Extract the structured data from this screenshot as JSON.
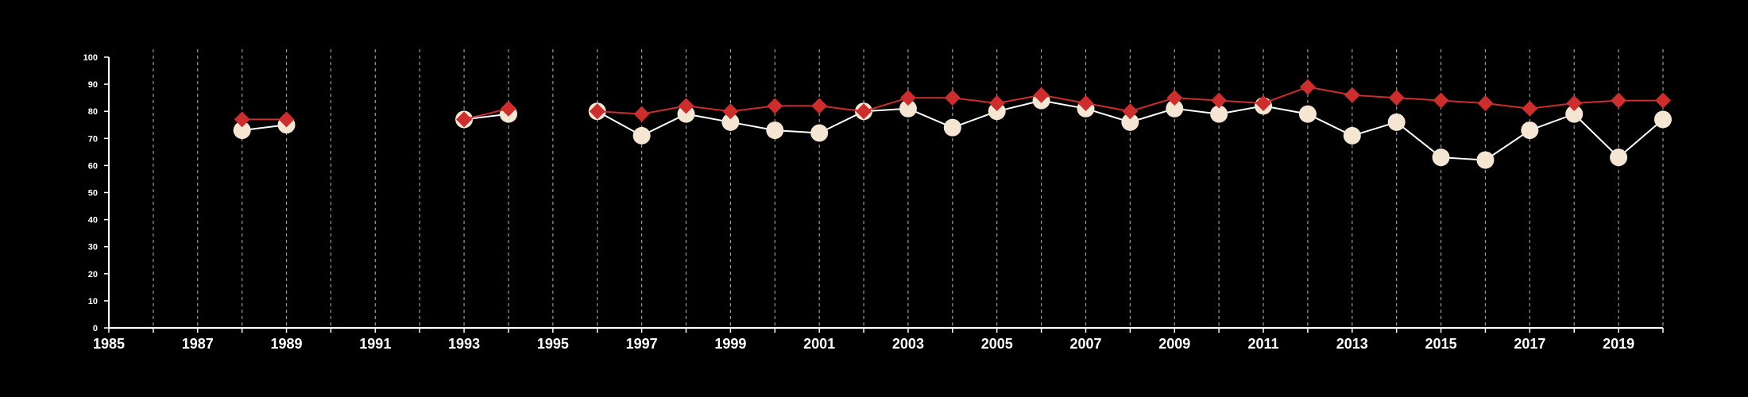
{
  "chart_data": {
    "type": "line",
    "title": "",
    "xlabel": "",
    "ylabel": "",
    "xlim": [
      1985,
      2020
    ],
    "ylim": [
      0,
      100
    ],
    "x_ticks": [
      1985,
      1987,
      1989,
      1991,
      1993,
      1995,
      1997,
      1999,
      2001,
      2003,
      2005,
      2007,
      2009,
      2011,
      2013,
      2015,
      2017,
      2019
    ],
    "y_ticks": [
      0,
      10,
      20,
      30,
      40,
      50,
      60,
      70,
      80,
      90,
      100
    ],
    "vertical_gridlines_every_year": true,
    "background": "#000000",
    "series": [
      {
        "marker": "circle",
        "color": "#f5e6d3",
        "line_color": "#ffffff",
        "points": [
          {
            "x": 1988,
            "y": 73
          },
          {
            "x": 1989,
            "y": 75
          },
          {
            "x": 1993,
            "y": 77
          },
          {
            "x": 1994,
            "y": 79
          },
          {
            "x": 1996,
            "y": 80
          },
          {
            "x": 1997,
            "y": 71
          },
          {
            "x": 1998,
            "y": 79
          },
          {
            "x": 1999,
            "y": 76
          },
          {
            "x": 2000,
            "y": 73
          },
          {
            "x": 2001,
            "y": 72
          },
          {
            "x": 2002,
            "y": 80
          },
          {
            "x": 2003,
            "y": 81
          },
          {
            "x": 2004,
            "y": 74
          },
          {
            "x": 2005,
            "y": 80
          },
          {
            "x": 2006,
            "y": 84
          },
          {
            "x": 2007,
            "y": 81
          },
          {
            "x": 2008,
            "y": 76
          },
          {
            "x": 2009,
            "y": 81
          },
          {
            "x": 2010,
            "y": 79
          },
          {
            "x": 2011,
            "y": 82
          },
          {
            "x": 2012,
            "y": 79
          },
          {
            "x": 2013,
            "y": 71
          },
          {
            "x": 2014,
            "y": 76
          },
          {
            "x": 2015,
            "y": 63
          },
          {
            "x": 2016,
            "y": 62
          },
          {
            "x": 2017,
            "y": 73
          },
          {
            "x": 2018,
            "y": 79
          },
          {
            "x": 2019,
            "y": 63
          },
          {
            "x": 2020,
            "y": 77
          }
        ],
        "segments": [
          [
            1988,
            1989
          ],
          [
            1993,
            1994
          ],
          [
            1996,
            2020
          ]
        ]
      },
      {
        "marker": "diamond",
        "color": "#cc2d2d",
        "line_color": "#cc2d2d",
        "points": [
          {
            "x": 1988,
            "y": 77
          },
          {
            "x": 1989,
            "y": 77
          },
          {
            "x": 1993,
            "y": 77
          },
          {
            "x": 1994,
            "y": 81
          },
          {
            "x": 1996,
            "y": 80
          },
          {
            "x": 1997,
            "y": 79
          },
          {
            "x": 1998,
            "y": 82
          },
          {
            "x": 1999,
            "y": 80
          },
          {
            "x": 2000,
            "y": 82
          },
          {
            "x": 2001,
            "y": 82
          },
          {
            "x": 2002,
            "y": 80
          },
          {
            "x": 2003,
            "y": 85
          },
          {
            "x": 2004,
            "y": 85
          },
          {
            "x": 2005,
            "y": 83
          },
          {
            "x": 2006,
            "y": 86
          },
          {
            "x": 2007,
            "y": 83
          },
          {
            "x": 2008,
            "y": 80
          },
          {
            "x": 2009,
            "y": 85
          },
          {
            "x": 2010,
            "y": 84
          },
          {
            "x": 2011,
            "y": 83
          },
          {
            "x": 2012,
            "y": 89
          },
          {
            "x": 2013,
            "y": 86
          },
          {
            "x": 2014,
            "y": 85
          },
          {
            "x": 2015,
            "y": 84
          },
          {
            "x": 2016,
            "y": 83
          },
          {
            "x": 2017,
            "y": 81
          },
          {
            "x": 2018,
            "y": 83
          },
          {
            "x": 2019,
            "y": 84
          },
          {
            "x": 2020,
            "y": 84
          }
        ],
        "segments": [
          [
            1988,
            1989
          ],
          [
            1993,
            1994
          ],
          [
            1996,
            2020
          ]
        ]
      }
    ]
  }
}
